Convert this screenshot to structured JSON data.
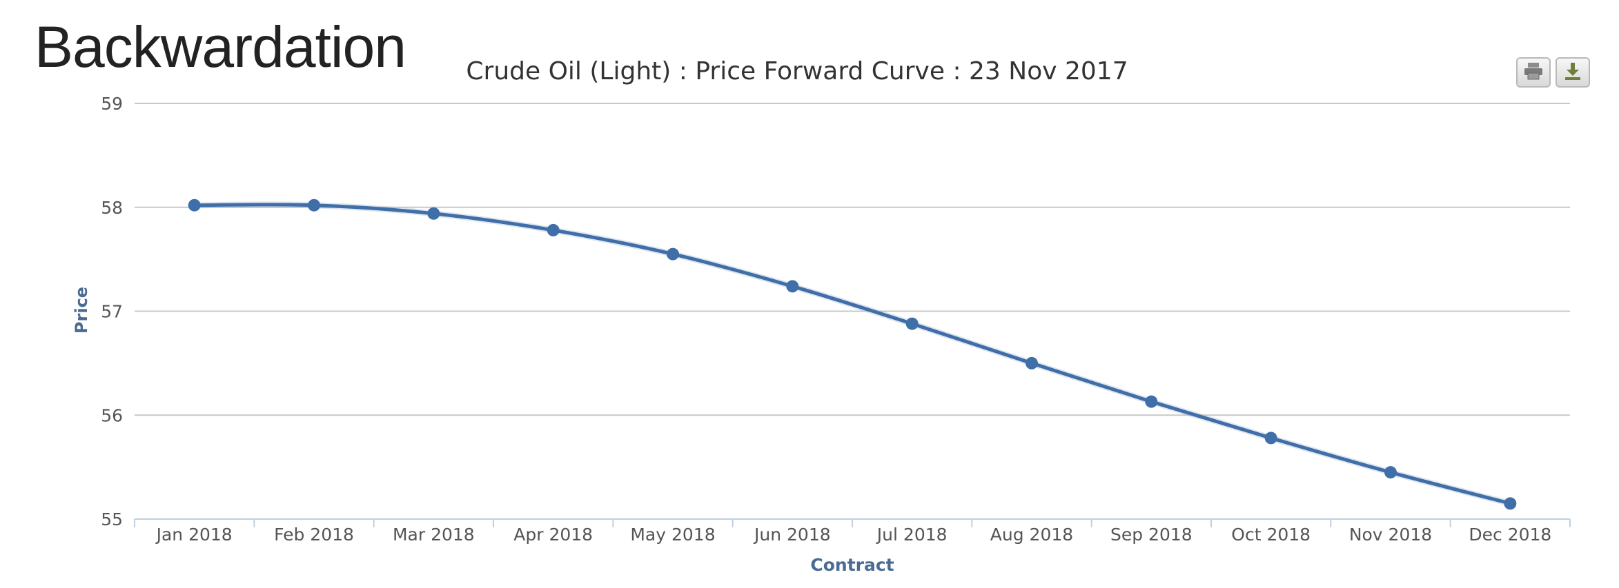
{
  "slide": {
    "title": "Backwardation"
  },
  "toolbar": {
    "print_icon": "printer-icon",
    "download_icon": "download-icon"
  },
  "colors": {
    "series": "#3f6ea8",
    "grid": "#c8c8c8",
    "axis_text": "#555555",
    "axis_title": "#4b6b93",
    "chart_title": "#333333"
  },
  "chart_data": {
    "type": "line",
    "title": "Crude Oil (Light) : Price Forward Curve : 23 Nov 2017",
    "xlabel": "Contract",
    "ylabel": "Price",
    "categories": [
      "Jan 2018",
      "Feb 2018",
      "Mar 2018",
      "Apr 2018",
      "May 2018",
      "Jun 2018",
      "Jul 2018",
      "Aug 2018",
      "Sep 2018",
      "Oct 2018",
      "Nov 2018",
      "Dec 2018"
    ],
    "series": [
      {
        "values": [
          58.02,
          58.02,
          57.94,
          57.78,
          57.55,
          57.24,
          56.88,
          56.5,
          56.13,
          55.78,
          55.45,
          55.15
        ]
      }
    ],
    "ylim": [
      55,
      59
    ],
    "yticks": [
      55,
      56,
      57,
      58,
      59
    ],
    "grid": true,
    "legend": "none"
  }
}
